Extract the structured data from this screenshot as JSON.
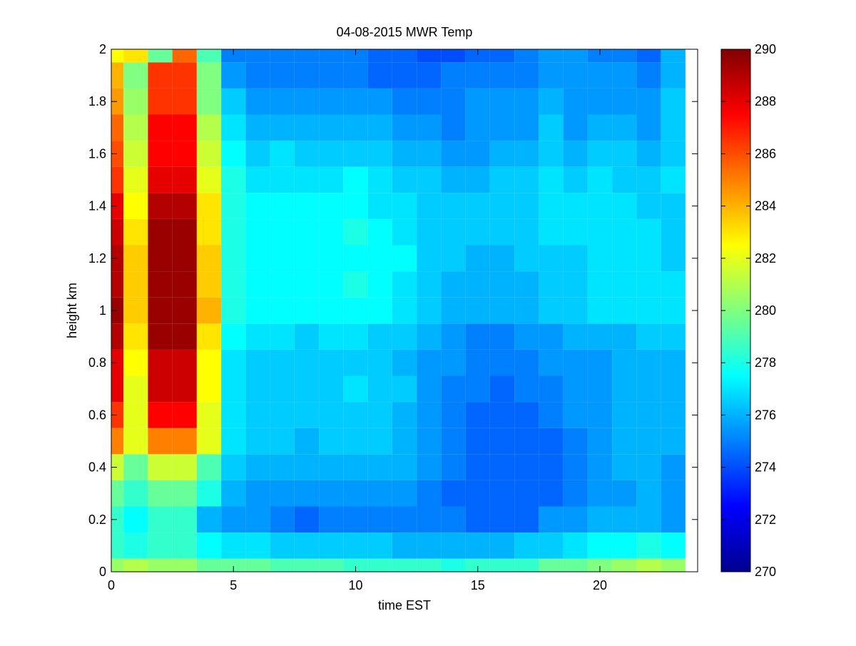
{
  "chart_data": {
    "type": "heatmap",
    "title": "04-08-2015 MWR Temp",
    "xlabel": "time EST",
    "ylabel": "height km",
    "xlim": [
      0,
      24
    ],
    "ylim": [
      0,
      2
    ],
    "x_ticks": [
      0,
      5,
      10,
      15,
      20
    ],
    "y_ticks": [
      0,
      0.2,
      0.4,
      0.6,
      0.8,
      1,
      1.2,
      1.4,
      1.6,
      1.8,
      2
    ],
    "x_tick_labels": [
      "0",
      "5",
      "10",
      "15",
      "20"
    ],
    "y_tick_labels": [
      "0",
      "0.2",
      "0.4",
      "0.6",
      "0.8",
      "1",
      "1.2",
      "1.4",
      "1.6",
      "1.8",
      "2"
    ],
    "colorbar": {
      "min": 270,
      "max": 290,
      "ticks": [
        270,
        272,
        274,
        276,
        278,
        280,
        282,
        284,
        286,
        288,
        290
      ],
      "tick_labels": [
        "270",
        "272",
        "274",
        "276",
        "278",
        "280",
        "282",
        "284",
        "286",
        "288",
        "290"
      ],
      "colormap": "jet"
    },
    "colormap_stops": [
      "#00008f",
      "#0000ff",
      "#00ffff",
      "#ffff00",
      "#ff0000",
      "#800000"
    ],
    "x_centers": [
      0,
      1,
      2,
      3,
      4,
      5,
      6,
      7,
      8,
      9,
      10,
      11,
      12,
      13,
      14,
      15,
      16,
      17,
      18,
      19,
      20,
      21,
      22,
      23
    ],
    "y_centers": [
      0.025,
      0.1,
      0.2,
      0.3,
      0.4,
      0.5,
      0.6,
      0.7,
      0.8,
      0.9,
      1.0,
      1.1,
      1.2,
      1.3,
      1.4,
      1.5,
      1.6,
      1.7,
      1.8,
      1.9,
      2.0
    ],
    "y_edges": [
      0,
      0.05,
      0.15,
      0.25,
      0.35,
      0.45,
      0.55,
      0.65,
      0.75,
      0.85,
      0.95,
      1.05,
      1.15,
      1.25,
      1.35,
      1.45,
      1.55,
      1.65,
      1.75,
      1.85,
      1.95,
      2.0
    ],
    "values": [
      [
        280.5,
        281.0,
        280.5,
        280.5,
        279.5,
        279.5,
        279.5,
        279.0,
        279.0,
        279.0,
        278.5,
        278.5,
        278.5,
        278.5,
        278.0,
        278.5,
        278.5,
        278.5,
        279.5,
        279.5,
        280.0,
        280.5,
        281.0,
        280.5
      ],
      [
        278.5,
        278.0,
        278.5,
        278.5,
        277.5,
        277.0,
        277.0,
        276.5,
        276.5,
        276.5,
        276.5,
        276.5,
        276.0,
        276.0,
        276.0,
        276.0,
        276.0,
        276.5,
        276.5,
        277.0,
        277.5,
        277.5,
        278.0,
        277.5
      ],
      [
        278.5,
        277.5,
        278.5,
        278.5,
        276.0,
        275.5,
        275.5,
        275.0,
        274.5,
        275.0,
        275.0,
        275.0,
        275.0,
        275.0,
        275.0,
        274.5,
        274.5,
        274.5,
        275.5,
        275.5,
        276.0,
        276.0,
        276.0,
        275.5
      ],
      [
        279.5,
        278.5,
        279.5,
        279.5,
        278.0,
        276.0,
        275.5,
        275.5,
        275.5,
        275.5,
        275.5,
        275.5,
        275.5,
        275.0,
        274.5,
        274.5,
        274.5,
        274.5,
        274.5,
        275.0,
        275.5,
        275.5,
        276.0,
        275.5
      ],
      [
        281.5,
        279.5,
        281.5,
        281.5,
        279.0,
        276.5,
        276.0,
        276.0,
        276.0,
        276.0,
        276.0,
        276.0,
        276.0,
        275.5,
        275.0,
        274.5,
        274.5,
        274.5,
        274.5,
        275.0,
        275.5,
        276.0,
        276.0,
        275.5
      ],
      [
        285.0,
        282.0,
        285.0,
        285.0,
        282.0,
        277.0,
        276.5,
        276.5,
        276.0,
        276.5,
        276.5,
        276.5,
        276.0,
        275.5,
        275.0,
        274.5,
        274.5,
        274.5,
        274.5,
        275.0,
        275.5,
        276.0,
        276.0,
        276.0
      ],
      [
        286.5,
        282.0,
        287.5,
        287.5,
        282.0,
        277.0,
        276.5,
        276.5,
        276.5,
        276.5,
        276.5,
        276.5,
        276.0,
        275.5,
        275.0,
        274.5,
        274.5,
        274.5,
        275.0,
        275.5,
        275.5,
        276.0,
        276.0,
        276.0
      ],
      [
        288.0,
        282.0,
        288.5,
        288.5,
        282.5,
        277.0,
        276.5,
        276.5,
        276.5,
        276.5,
        277.0,
        276.5,
        276.5,
        275.5,
        275.0,
        275.0,
        274.5,
        275.0,
        275.0,
        275.5,
        275.5,
        276.0,
        276.0,
        276.0
      ],
      [
        288.0,
        282.5,
        288.5,
        288.5,
        282.5,
        277.0,
        276.5,
        276.5,
        276.5,
        276.5,
        276.5,
        276.5,
        276.0,
        275.5,
        275.5,
        275.0,
        275.0,
        275.0,
        275.5,
        275.5,
        275.5,
        276.0,
        276.0,
        276.0
      ],
      [
        289.0,
        283.0,
        289.5,
        289.5,
        283.0,
        277.5,
        277.0,
        277.0,
        276.5,
        277.0,
        277.0,
        276.5,
        276.5,
        276.0,
        275.5,
        275.0,
        275.0,
        275.5,
        275.5,
        276.0,
        276.0,
        276.0,
        276.5,
        276.5
      ],
      [
        289.5,
        283.5,
        289.5,
        289.5,
        284.0,
        278.0,
        277.5,
        277.5,
        277.5,
        277.5,
        277.5,
        277.5,
        277.0,
        276.5,
        276.0,
        276.0,
        276.0,
        276.0,
        276.5,
        276.5,
        277.0,
        277.0,
        277.0,
        277.0
      ],
      [
        289.0,
        283.5,
        289.5,
        289.5,
        283.5,
        278.0,
        277.5,
        277.5,
        277.5,
        277.5,
        278.0,
        277.5,
        277.0,
        276.5,
        276.0,
        276.0,
        276.0,
        276.0,
        276.5,
        276.5,
        277.0,
        277.0,
        277.0,
        277.0
      ],
      [
        289.0,
        283.5,
        289.5,
        289.5,
        283.5,
        278.0,
        277.5,
        277.5,
        277.5,
        277.5,
        277.5,
        277.5,
        277.5,
        276.5,
        276.5,
        276.0,
        276.0,
        276.5,
        276.5,
        276.5,
        277.0,
        277.0,
        277.0,
        276.5
      ],
      [
        288.5,
        283.0,
        289.5,
        289.5,
        283.0,
        278.0,
        277.5,
        277.5,
        277.5,
        277.5,
        278.0,
        277.5,
        277.0,
        276.5,
        276.5,
        276.5,
        276.5,
        276.5,
        277.0,
        277.0,
        277.0,
        277.0,
        277.0,
        276.5
      ],
      [
        288.0,
        282.5,
        289.0,
        289.0,
        283.0,
        278.0,
        277.5,
        277.5,
        277.5,
        277.5,
        277.5,
        277.0,
        277.0,
        276.5,
        276.5,
        276.5,
        276.5,
        276.5,
        277.0,
        277.0,
        277.0,
        277.0,
        276.5,
        276.5
      ],
      [
        286.5,
        282.0,
        288.0,
        288.0,
        282.0,
        278.0,
        277.0,
        277.0,
        277.0,
        277.0,
        277.5,
        277.0,
        276.5,
        276.5,
        276.0,
        276.0,
        276.5,
        276.5,
        277.0,
        276.5,
        277.0,
        276.5,
        276.5,
        277.0
      ],
      [
        286.0,
        281.5,
        287.5,
        287.5,
        281.5,
        277.5,
        276.5,
        277.0,
        276.5,
        276.5,
        276.5,
        276.5,
        276.0,
        276.0,
        275.5,
        275.5,
        276.0,
        276.0,
        276.5,
        276.0,
        276.5,
        276.5,
        276.0,
        276.5
      ],
      [
        285.5,
        281.0,
        287.5,
        287.5,
        281.0,
        277.0,
        276.0,
        276.0,
        276.0,
        276.0,
        276.0,
        276.0,
        275.5,
        275.5,
        275.0,
        275.5,
        275.5,
        275.5,
        276.5,
        275.5,
        276.0,
        276.0,
        275.5,
        276.5
      ],
      [
        284.5,
        280.5,
        286.5,
        286.5,
        280.0,
        276.5,
        275.5,
        275.5,
        275.5,
        275.5,
        275.5,
        275.5,
        275.0,
        275.0,
        275.0,
        275.5,
        275.5,
        275.5,
        276.0,
        275.5,
        275.5,
        275.5,
        275.5,
        276.5
      ],
      [
        284.0,
        280.0,
        286.5,
        286.5,
        280.0,
        275.5,
        275.0,
        275.0,
        275.0,
        275.0,
        275.0,
        274.5,
        274.5,
        274.5,
        275.0,
        275.0,
        275.0,
        275.0,
        275.5,
        275.5,
        275.5,
        275.5,
        275.0,
        276.0
      ],
      [
        282.5,
        283.0,
        279.5,
        285.5,
        279.0,
        275.0,
        275.0,
        275.0,
        275.0,
        275.0,
        275.0,
        274.5,
        274.5,
        274.0,
        274.0,
        274.5,
        274.5,
        275.0,
        275.5,
        275.5,
        275.0,
        275.0,
        274.5,
        276.0
      ]
    ]
  }
}
